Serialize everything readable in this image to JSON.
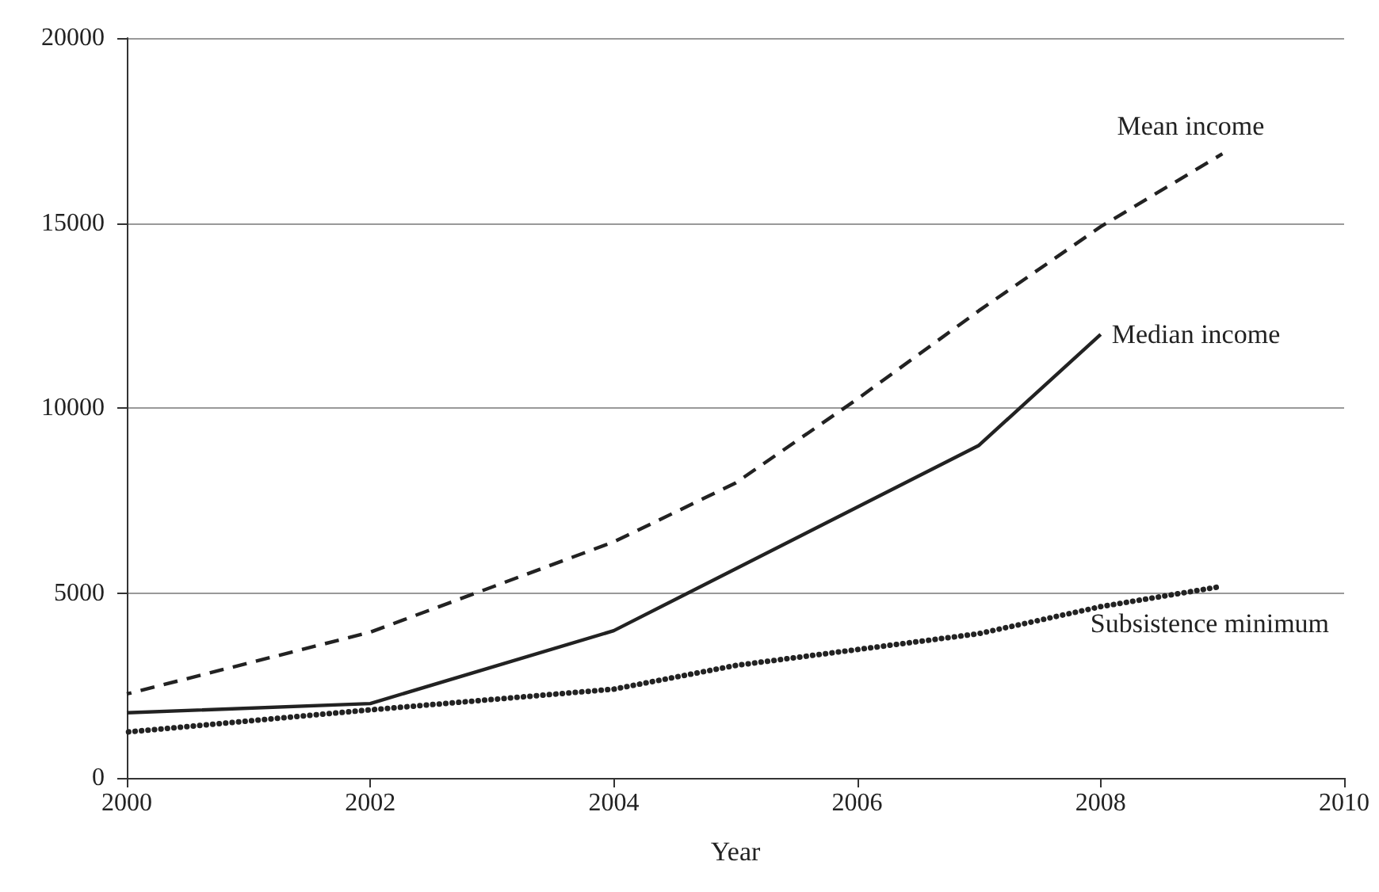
{
  "chart_data": {
    "type": "line",
    "xlabel": "Year",
    "series": [
      {
        "name": "Mean income",
        "color": "#222222",
        "line_style": "dashed",
        "x": [
          2000,
          2002,
          2004,
          2005,
          2006,
          2007,
          2008,
          2009
        ],
        "values": [
          2270,
          3940,
          6380,
          7970,
          10240,
          12630,
          14900,
          16870
        ]
      },
      {
        "name": "Median income",
        "color": "#222222",
        "line_style": "solid",
        "x": [
          2000,
          2002,
          2004,
          2007,
          2008
        ],
        "values": [
          1760,
          2010,
          3980,
          8990,
          11990
        ]
      },
      {
        "name": "Subsistence minimum",
        "color": "#222222",
        "line_style": "dotted",
        "x": [
          2000,
          2002,
          2004,
          2005,
          2006,
          2007,
          2008,
          2009
        ],
        "values": [
          1240,
          1840,
          2400,
          3040,
          3470,
          3900,
          4630,
          5180
        ]
      }
    ],
    "xlim": [
      2000,
      2010
    ],
    "xticks": [
      2000,
      2002,
      2004,
      2006,
      2008,
      2010
    ],
    "ylim": [
      0,
      20000
    ],
    "yticks": [
      0,
      5000,
      10000,
      15000,
      20000
    ],
    "grid": "y",
    "marker": "none"
  }
}
